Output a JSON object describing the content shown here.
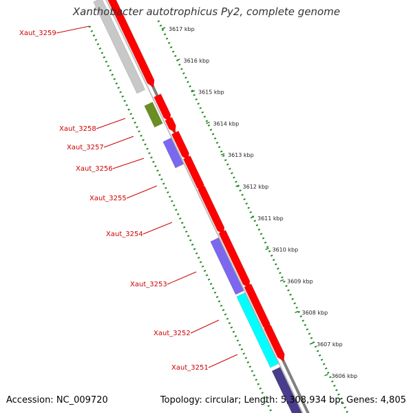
{
  "title": "Xanthobacter autotrophicus Py2, complete genome",
  "accession": "Accession: NC_009720",
  "summary": "Topology: circular; Length: 5,308,934 bp; Genes: 4,805",
  "colors": {
    "forward_gene": "#ff0000",
    "gray_gene": "#c8c8c8",
    "olive_gene": "#6b8e23",
    "purple_gene": "#7b68ee",
    "cyan_gene": "#00ffff",
    "navy_gene": "#483d8b",
    "backbone": "#808080",
    "scale_dots": "#228b22",
    "gene_label": "#cc0000"
  },
  "gene_labels": [
    "Xaut_3259",
    "Xaut_3258",
    "Xaut_3257",
    "Xaut_3256",
    "Xaut_3255",
    "Xaut_3254",
    "Xaut_3253",
    "Xaut_3252",
    "Xaut_3251"
  ],
  "kbp_ticks": [
    "3617 kbp",
    "3616 kbp",
    "3615 kbp",
    "3614 kbp",
    "3613 kbp",
    "3612 kbp",
    "3611 kbp",
    "3610 kbp",
    "3609 kbp",
    "3608 kbp",
    "3607 kbp",
    "3606 kbp"
  ],
  "genes": [
    {
      "color_key": "gray_gene"
    },
    {
      "color_key": "olive_gene"
    },
    {
      "color_key": "purple_gene"
    },
    {
      "color_key": "purple_gene"
    },
    {
      "color_key": "cyan_gene"
    },
    {
      "color_key": "navy_gene"
    },
    {
      "color_key": "forward_gene"
    },
    {
      "color_key": "forward_gene"
    },
    {
      "color_key": "forward_gene"
    },
    {
      "color_key": "forward_gene"
    },
    {
      "color_key": "forward_gene"
    },
    {
      "color_key": "forward_gene"
    },
    {
      "color_key": "forward_gene"
    },
    {
      "color_key": "forward_gene"
    },
    {
      "color_key": "forward_gene"
    }
  ]
}
